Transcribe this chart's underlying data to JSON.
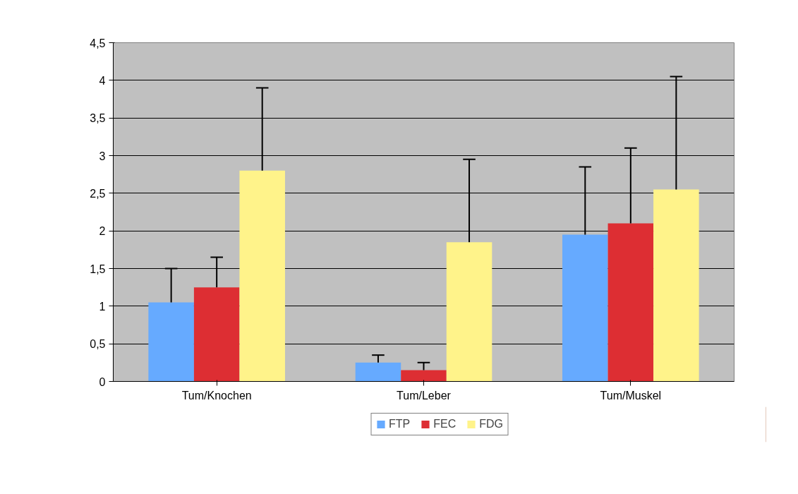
{
  "chart_data": {
    "type": "bar",
    "categories": [
      "Tum/Knochen",
      "Tum/Leber",
      "Tum/Muskel"
    ],
    "series": [
      {
        "name": "FTP",
        "color": "#66aaff",
        "values": [
          1.05,
          0.25,
          1.95
        ],
        "errors": [
          [
            1.05,
            1.5
          ],
          [
            0.25,
            0.35
          ],
          [
            1.95,
            2.85
          ]
        ]
      },
      {
        "name": "FEC",
        "color": "#dd2e33",
        "values": [
          1.25,
          0.15,
          2.1
        ],
        "errors": [
          [
            1.25,
            1.65
          ],
          [
            0.15,
            0.25
          ],
          [
            2.1,
            3.1
          ]
        ]
      },
      {
        "name": "FDG",
        "color": "#fff38a",
        "values": [
          2.8,
          1.85,
          2.55
        ],
        "errors": [
          [
            2.8,
            3.9
          ],
          [
            1.85,
            2.95
          ],
          [
            2.55,
            4.05
          ]
        ]
      }
    ],
    "ylim": [
      0,
      4.5
    ],
    "yticks": [
      0,
      {
        "value": 0.5,
        "label": "0,5"
      },
      1,
      {
        "value": 1.5,
        "label": "1,5"
      },
      2,
      {
        "value": 2.5,
        "label": "2,5"
      },
      3,
      {
        "value": 3.5,
        "label": "3,5"
      },
      4,
      {
        "value": 4.5,
        "label": "4,5"
      }
    ],
    "grid": "y",
    "legend": "bottom"
  }
}
